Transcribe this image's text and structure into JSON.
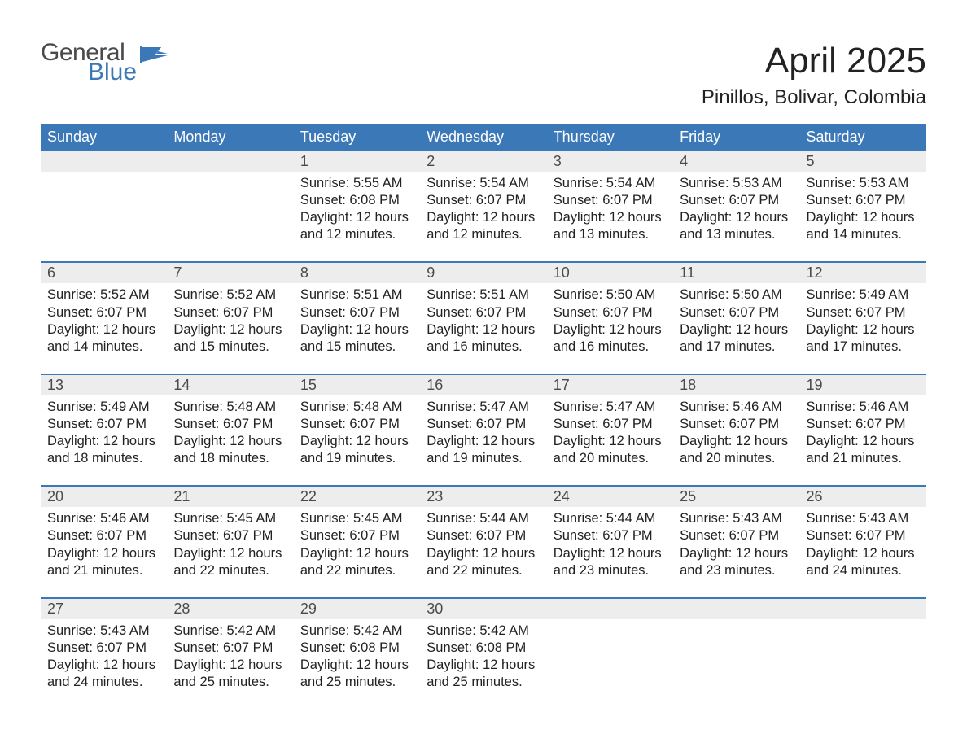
{
  "brand": {
    "line1": "General",
    "line2": "Blue"
  },
  "title": "April 2025",
  "location": "Pinillos, Bolivar, Colombia",
  "colors": {
    "header_bg": "#3b78b8",
    "header_text": "#ffffff",
    "daynum_bg": "#ededed",
    "text": "#222222",
    "week_divider": "#3b78b8",
    "logo_gray": "#4a4a4a",
    "logo_blue": "#3b78b8",
    "page_bg": "#ffffff"
  },
  "weekdays": [
    "Sunday",
    "Monday",
    "Tuesday",
    "Wednesday",
    "Thursday",
    "Friday",
    "Saturday"
  ],
  "weeks": [
    [
      {
        "n": "",
        "sr": "",
        "ss": "",
        "dl1": "",
        "dl2": ""
      },
      {
        "n": "",
        "sr": "",
        "ss": "",
        "dl1": "",
        "dl2": ""
      },
      {
        "n": "1",
        "sr": "Sunrise: 5:55 AM",
        "ss": "Sunset: 6:08 PM",
        "dl1": "Daylight: 12 hours",
        "dl2": "and 12 minutes."
      },
      {
        "n": "2",
        "sr": "Sunrise: 5:54 AM",
        "ss": "Sunset: 6:07 PM",
        "dl1": "Daylight: 12 hours",
        "dl2": "and 12 minutes."
      },
      {
        "n": "3",
        "sr": "Sunrise: 5:54 AM",
        "ss": "Sunset: 6:07 PM",
        "dl1": "Daylight: 12 hours",
        "dl2": "and 13 minutes."
      },
      {
        "n": "4",
        "sr": "Sunrise: 5:53 AM",
        "ss": "Sunset: 6:07 PM",
        "dl1": "Daylight: 12 hours",
        "dl2": "and 13 minutes."
      },
      {
        "n": "5",
        "sr": "Sunrise: 5:53 AM",
        "ss": "Sunset: 6:07 PM",
        "dl1": "Daylight: 12 hours",
        "dl2": "and 14 minutes."
      }
    ],
    [
      {
        "n": "6",
        "sr": "Sunrise: 5:52 AM",
        "ss": "Sunset: 6:07 PM",
        "dl1": "Daylight: 12 hours",
        "dl2": "and 14 minutes."
      },
      {
        "n": "7",
        "sr": "Sunrise: 5:52 AM",
        "ss": "Sunset: 6:07 PM",
        "dl1": "Daylight: 12 hours",
        "dl2": "and 15 minutes."
      },
      {
        "n": "8",
        "sr": "Sunrise: 5:51 AM",
        "ss": "Sunset: 6:07 PM",
        "dl1": "Daylight: 12 hours",
        "dl2": "and 15 minutes."
      },
      {
        "n": "9",
        "sr": "Sunrise: 5:51 AM",
        "ss": "Sunset: 6:07 PM",
        "dl1": "Daylight: 12 hours",
        "dl2": "and 16 minutes."
      },
      {
        "n": "10",
        "sr": "Sunrise: 5:50 AM",
        "ss": "Sunset: 6:07 PM",
        "dl1": "Daylight: 12 hours",
        "dl2": "and 16 minutes."
      },
      {
        "n": "11",
        "sr": "Sunrise: 5:50 AM",
        "ss": "Sunset: 6:07 PM",
        "dl1": "Daylight: 12 hours",
        "dl2": "and 17 minutes."
      },
      {
        "n": "12",
        "sr": "Sunrise: 5:49 AM",
        "ss": "Sunset: 6:07 PM",
        "dl1": "Daylight: 12 hours",
        "dl2": "and 17 minutes."
      }
    ],
    [
      {
        "n": "13",
        "sr": "Sunrise: 5:49 AM",
        "ss": "Sunset: 6:07 PM",
        "dl1": "Daylight: 12 hours",
        "dl2": "and 18 minutes."
      },
      {
        "n": "14",
        "sr": "Sunrise: 5:48 AM",
        "ss": "Sunset: 6:07 PM",
        "dl1": "Daylight: 12 hours",
        "dl2": "and 18 minutes."
      },
      {
        "n": "15",
        "sr": "Sunrise: 5:48 AM",
        "ss": "Sunset: 6:07 PM",
        "dl1": "Daylight: 12 hours",
        "dl2": "and 19 minutes."
      },
      {
        "n": "16",
        "sr": "Sunrise: 5:47 AM",
        "ss": "Sunset: 6:07 PM",
        "dl1": "Daylight: 12 hours",
        "dl2": "and 19 minutes."
      },
      {
        "n": "17",
        "sr": "Sunrise: 5:47 AM",
        "ss": "Sunset: 6:07 PM",
        "dl1": "Daylight: 12 hours",
        "dl2": "and 20 minutes."
      },
      {
        "n": "18",
        "sr": "Sunrise: 5:46 AM",
        "ss": "Sunset: 6:07 PM",
        "dl1": "Daylight: 12 hours",
        "dl2": "and 20 minutes."
      },
      {
        "n": "19",
        "sr": "Sunrise: 5:46 AM",
        "ss": "Sunset: 6:07 PM",
        "dl1": "Daylight: 12 hours",
        "dl2": "and 21 minutes."
      }
    ],
    [
      {
        "n": "20",
        "sr": "Sunrise: 5:46 AM",
        "ss": "Sunset: 6:07 PM",
        "dl1": "Daylight: 12 hours",
        "dl2": "and 21 minutes."
      },
      {
        "n": "21",
        "sr": "Sunrise: 5:45 AM",
        "ss": "Sunset: 6:07 PM",
        "dl1": "Daylight: 12 hours",
        "dl2": "and 22 minutes."
      },
      {
        "n": "22",
        "sr": "Sunrise: 5:45 AM",
        "ss": "Sunset: 6:07 PM",
        "dl1": "Daylight: 12 hours",
        "dl2": "and 22 minutes."
      },
      {
        "n": "23",
        "sr": "Sunrise: 5:44 AM",
        "ss": "Sunset: 6:07 PM",
        "dl1": "Daylight: 12 hours",
        "dl2": "and 22 minutes."
      },
      {
        "n": "24",
        "sr": "Sunrise: 5:44 AM",
        "ss": "Sunset: 6:07 PM",
        "dl1": "Daylight: 12 hours",
        "dl2": "and 23 minutes."
      },
      {
        "n": "25",
        "sr": "Sunrise: 5:43 AM",
        "ss": "Sunset: 6:07 PM",
        "dl1": "Daylight: 12 hours",
        "dl2": "and 23 minutes."
      },
      {
        "n": "26",
        "sr": "Sunrise: 5:43 AM",
        "ss": "Sunset: 6:07 PM",
        "dl1": "Daylight: 12 hours",
        "dl2": "and 24 minutes."
      }
    ],
    [
      {
        "n": "27",
        "sr": "Sunrise: 5:43 AM",
        "ss": "Sunset: 6:07 PM",
        "dl1": "Daylight: 12 hours",
        "dl2": "and 24 minutes."
      },
      {
        "n": "28",
        "sr": "Sunrise: 5:42 AM",
        "ss": "Sunset: 6:07 PM",
        "dl1": "Daylight: 12 hours",
        "dl2": "and 25 minutes."
      },
      {
        "n": "29",
        "sr": "Sunrise: 5:42 AM",
        "ss": "Sunset: 6:08 PM",
        "dl1": "Daylight: 12 hours",
        "dl2": "and 25 minutes."
      },
      {
        "n": "30",
        "sr": "Sunrise: 5:42 AM",
        "ss": "Sunset: 6:08 PM",
        "dl1": "Daylight: 12 hours",
        "dl2": "and 25 minutes."
      },
      {
        "n": "",
        "sr": "",
        "ss": "",
        "dl1": "",
        "dl2": ""
      },
      {
        "n": "",
        "sr": "",
        "ss": "",
        "dl1": "",
        "dl2": ""
      },
      {
        "n": "",
        "sr": "",
        "ss": "",
        "dl1": "",
        "dl2": ""
      }
    ]
  ]
}
